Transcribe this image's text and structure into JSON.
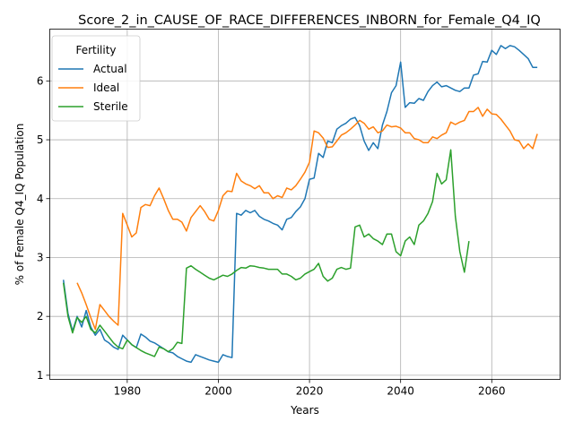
{
  "chart_data": {
    "type": "line",
    "title": "Score_2_in_CAUSE_OF_RACE_DIFFERENCES_INBORN_for_Female_Q4_IQ",
    "xlabel": "Years",
    "ylabel": "% of Female Q4_IQ Population",
    "xlim": [
      1963,
      2075
    ],
    "ylim": [
      0.93,
      6.88
    ],
    "xticks": [
      1980,
      2000,
      2020,
      2040,
      2060
    ],
    "yticks": [
      1,
      2,
      3,
      4,
      5,
      6
    ],
    "grid": true,
    "legend": {
      "title": "Fertility",
      "placement": "upper-left"
    },
    "series": [
      {
        "name": "Actual",
        "color": "#1f77b4",
        "x": [
          1966,
          1967,
          1968,
          1969,
          1970,
          1971,
          1972,
          1973,
          1974,
          1975,
          1976,
          1977,
          1978,
          1979,
          1980,
          1981,
          1982,
          1983,
          1984,
          1985,
          1986,
          1987,
          1988,
          1989,
          1990,
          1991,
          1992,
          1993,
          1994,
          1995,
          1996,
          1997,
          1998,
          1999,
          2000,
          2001,
          2002,
          2003,
          2004,
          2005,
          2006,
          2007,
          2008,
          2009,
          2010,
          2011,
          2012,
          2013,
          2014,
          2015,
          2016,
          2017,
          2018,
          2019,
          2020,
          2021,
          2022,
          2023,
          2024,
          2025,
          2026,
          2027,
          2028,
          2029,
          2030,
          2031,
          2032,
          2033,
          2034,
          2035,
          2036,
          2037,
          2038,
          2039,
          2040,
          2041,
          2042,
          2043,
          2044,
          2045,
          2046,
          2047,
          2048,
          2049,
          2050,
          2051,
          2052,
          2053,
          2054,
          2055,
          2056,
          2057,
          2058,
          2059,
          2060,
          2061,
          2062,
          2063,
          2064,
          2065,
          2066,
          2067,
          2068,
          2069,
          2070
        ],
        "values": [
          2.62,
          2.05,
          1.75,
          2.0,
          1.82,
          2.1,
          1.82,
          1.68,
          1.78,
          1.6,
          1.55,
          1.48,
          1.44,
          1.68,
          1.6,
          1.52,
          1.47,
          1.7,
          1.65,
          1.58,
          1.55,
          1.5,
          1.45,
          1.4,
          1.38,
          1.32,
          1.28,
          1.24,
          1.22,
          1.35,
          1.32,
          1.29,
          1.26,
          1.24,
          1.22,
          1.35,
          1.32,
          1.3,
          3.75,
          3.72,
          3.8,
          3.76,
          3.8,
          3.7,
          3.65,
          3.62,
          3.58,
          3.55,
          3.47,
          3.65,
          3.68,
          3.78,
          3.86,
          4.0,
          4.33,
          4.35,
          4.77,
          4.7,
          4.98,
          4.95,
          5.18,
          5.24,
          5.28,
          5.35,
          5.38,
          5.24,
          4.98,
          4.82,
          4.95,
          4.85,
          5.25,
          5.48,
          5.8,
          5.92,
          6.32,
          5.55,
          5.63,
          5.62,
          5.7,
          5.67,
          5.82,
          5.92,
          5.98,
          5.9,
          5.92,
          5.88,
          5.84,
          5.82,
          5.88,
          5.88,
          6.1,
          6.12,
          6.33,
          6.32,
          6.52,
          6.45,
          6.6,
          6.55,
          6.6,
          6.58,
          6.52,
          6.45,
          6.38,
          6.23,
          6.23
        ]
      },
      {
        "name": "Ideal",
        "color": "#ff7f0e",
        "x": [
          1969,
          1970,
          1971,
          1972,
          1973,
          1974,
          1975,
          1976,
          1977,
          1978,
          1979,
          1980,
          1981,
          1982,
          1983,
          1984,
          1985,
          1986,
          1987,
          1988,
          1989,
          1990,
          1991,
          1992,
          1993,
          1994,
          1995,
          1996,
          1997,
          1998,
          1999,
          2000,
          2001,
          2002,
          2003,
          2004,
          2005,
          2006,
          2007,
          2008,
          2009,
          2010,
          2011,
          2012,
          2013,
          2014,
          2015,
          2016,
          2017,
          2018,
          2019,
          2020,
          2021,
          2022,
          2023,
          2024,
          2025,
          2026,
          2027,
          2028,
          2029,
          2030,
          2031,
          2032,
          2033,
          2034,
          2035,
          2036,
          2037,
          2038,
          2039,
          2040,
          2041,
          2042,
          2043,
          2044,
          2045,
          2046,
          2047,
          2048,
          2049,
          2050,
          2051,
          2052,
          2053,
          2054,
          2055,
          2056,
          2057,
          2058,
          2059,
          2060,
          2061,
          2062,
          2063,
          2064,
          2065,
          2066,
          2067,
          2068,
          2069,
          2070
        ],
        "values": [
          2.57,
          2.4,
          2.2,
          1.98,
          1.78,
          2.2,
          2.1,
          2.0,
          1.92,
          1.85,
          3.75,
          3.55,
          3.35,
          3.42,
          3.85,
          3.9,
          3.88,
          4.05,
          4.18,
          4.0,
          3.8,
          3.65,
          3.65,
          3.6,
          3.45,
          3.68,
          3.78,
          3.88,
          3.78,
          3.65,
          3.62,
          3.8,
          4.05,
          4.13,
          4.12,
          4.43,
          4.3,
          4.25,
          4.22,
          4.17,
          4.22,
          4.1,
          4.1,
          4.0,
          4.05,
          4.02,
          4.18,
          4.15,
          4.22,
          4.33,
          4.45,
          4.62,
          5.15,
          5.12,
          5.03,
          4.87,
          4.88,
          4.98,
          5.08,
          5.12,
          5.18,
          5.25,
          5.33,
          5.28,
          5.18,
          5.22,
          5.12,
          5.15,
          5.25,
          5.22,
          5.23,
          5.2,
          5.12,
          5.12,
          5.02,
          5.0,
          4.95,
          4.95,
          5.05,
          5.02,
          5.08,
          5.12,
          5.3,
          5.26,
          5.3,
          5.33,
          5.48,
          5.48,
          5.55,
          5.4,
          5.52,
          5.44,
          5.43,
          5.35,
          5.25,
          5.15,
          5.0,
          4.98,
          4.85,
          4.93,
          4.85,
          5.1
        ]
      },
      {
        "name": "Sterile",
        "color": "#2ca02c",
        "x": [
          1966,
          1967,
          1968,
          1969,
          1970,
          1971,
          1972,
          1973,
          1974,
          1975,
          1976,
          1977,
          1978,
          1979,
          1980,
          1981,
          1982,
          1983,
          1984,
          1985,
          1986,
          1987,
          1988,
          1989,
          1990,
          1991,
          1992,
          1993,
          1994,
          1995,
          1996,
          1997,
          1998,
          1999,
          2000,
          2001,
          2002,
          2003,
          2004,
          2005,
          2006,
          2007,
          2008,
          2009,
          2010,
          2011,
          2012,
          2013,
          2014,
          2015,
          2016,
          2017,
          2018,
          2019,
          2020,
          2021,
          2022,
          2023,
          2024,
          2025,
          2026,
          2027,
          2028,
          2029,
          2030,
          2031,
          2032,
          2033,
          2034,
          2035,
          2036,
          2037,
          2038,
          2039,
          2040,
          2041,
          2042,
          2043,
          2044,
          2045,
          2046,
          2047,
          2048,
          2049,
          2050,
          2051,
          2052,
          2053,
          2054,
          2055
        ],
        "values": [
          2.57,
          2.0,
          1.72,
          1.98,
          1.9,
          2.0,
          1.78,
          1.72,
          1.85,
          1.75,
          1.65,
          1.55,
          1.48,
          1.45,
          1.6,
          1.52,
          1.47,
          1.42,
          1.38,
          1.35,
          1.32,
          1.48,
          1.45,
          1.4,
          1.45,
          1.56,
          1.54,
          2.82,
          2.86,
          2.8,
          2.75,
          2.7,
          2.65,
          2.62,
          2.66,
          2.7,
          2.68,
          2.72,
          2.78,
          2.83,
          2.82,
          2.86,
          2.85,
          2.83,
          2.82,
          2.8,
          2.8,
          2.8,
          2.72,
          2.72,
          2.68,
          2.62,
          2.65,
          2.72,
          2.76,
          2.8,
          2.9,
          2.68,
          2.6,
          2.65,
          2.8,
          2.83,
          2.8,
          2.82,
          3.52,
          3.55,
          3.35,
          3.4,
          3.32,
          3.28,
          3.22,
          3.4,
          3.4,
          3.1,
          3.03,
          3.28,
          3.35,
          3.22,
          3.55,
          3.62,
          3.75,
          3.95,
          4.43,
          4.25,
          4.32,
          4.83,
          3.7,
          3.1,
          2.75,
          3.28
        ]
      }
    ]
  }
}
